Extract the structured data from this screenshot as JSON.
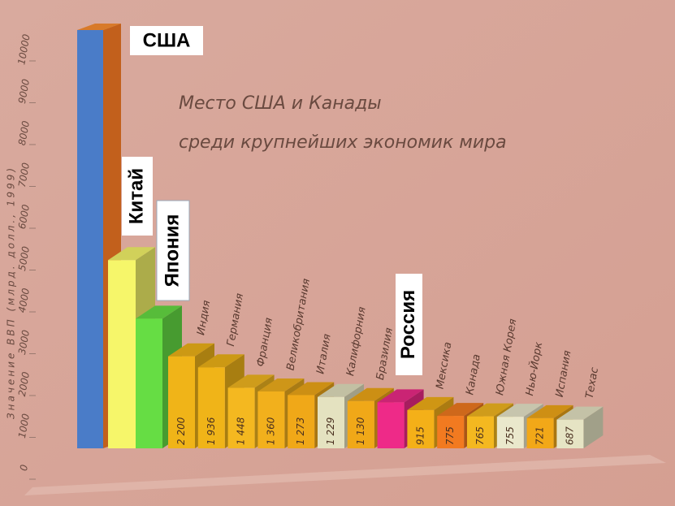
{
  "chart_data": {
    "type": "bar3d",
    "title": [
      "Место США и Канады",
      "среди крупнейших экономик мира"
    ],
    "y_label": "Значение ВВП (млрд. долл., 1999)",
    "categories": [
      "США",
      "Китай",
      "Япония",
      "Индия",
      "Германия",
      "Франция",
      "Великобритания",
      "Италия",
      "Калифорния",
      "Бразилия",
      "Россия",
      "Мексика",
      "Канада",
      "Южная Корея",
      "Нью-Йорк",
      "Испания",
      "Техас"
    ],
    "values": [
      10000,
      4500,
      3100,
      2200,
      1936,
      1448,
      1360,
      1273,
      1229,
      1130,
      1100,
      915,
      775,
      765,
      755,
      721,
      687
    ],
    "value_labels": [
      null,
      null,
      null,
      "2 200",
      "1 936",
      "1 448",
      "1 360",
      "1 273",
      "1 229",
      "1 130",
      null,
      "915",
      "775",
      "765",
      "755",
      "721",
      "687"
    ],
    "colors": [
      "#4a7cc8",
      "#f6f66a",
      "#66dd44",
      "#f0b418",
      "#f0b418",
      "#f4b820",
      "#f2b01c",
      "#f0a818",
      "#e4e2c0",
      "#f0a818",
      "#ee2a88",
      "#f4b018",
      "#f27a20",
      "#f4b820",
      "#eae8cc",
      "#f2a818",
      "#e6e4c4"
    ],
    "ylim": [
      0,
      10000
    ],
    "yticks": [
      0,
      1000,
      2000,
      3000,
      4000,
      5000,
      6000,
      7000,
      8000,
      9000,
      10000
    ]
  }
}
